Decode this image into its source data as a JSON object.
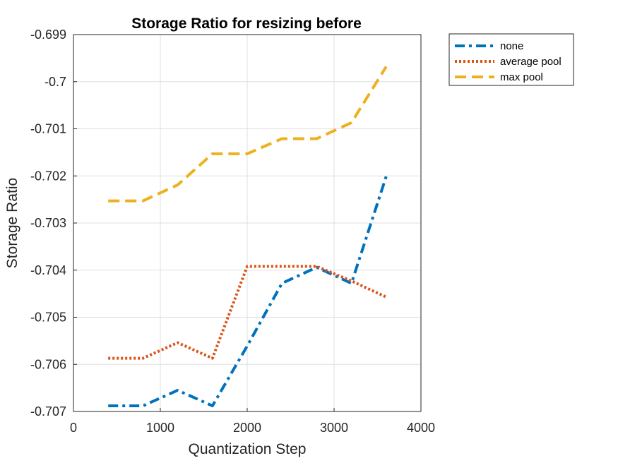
{
  "chart_data": {
    "type": "line",
    "title": "Storage Ratio for resizing before",
    "xlabel": "Quantization Step",
    "ylabel": "Storage Ratio",
    "xlim": [
      0,
      4000
    ],
    "ylim": [
      -0.707,
      -0.699
    ],
    "xticks": [
      0,
      1000,
      2000,
      3000,
      4000
    ],
    "xtick_labels": [
      "0",
      "1000",
      "2000",
      "3000",
      "4000"
    ],
    "yticks": [
      -0.699,
      -0.7,
      -0.701,
      -0.702,
      -0.703,
      -0.704,
      -0.705,
      -0.706,
      -0.707
    ],
    "ytick_labels": [
      "-0.699",
      "-0.7",
      "-0.701",
      "-0.702",
      "-0.703",
      "-0.704",
      "-0.705",
      "-0.706",
      "-0.707"
    ],
    "grid": true,
    "legend_position": "outside-top-right",
    "x": [
      400,
      800,
      1200,
      1600,
      2000,
      2400,
      2800,
      3200,
      3600
    ],
    "series": [
      {
        "name": "none",
        "color": "#0072BD",
        "style": "dash-dot",
        "values": [
          -0.70688,
          -0.70688,
          -0.70655,
          -0.70688,
          -0.70561,
          -0.70428,
          -0.70394,
          -0.70428,
          -0.70201
        ]
      },
      {
        "name": "average pool",
        "color": "#D95319",
        "style": "dotted",
        "values": [
          -0.70587,
          -0.70587,
          -0.70554,
          -0.70587,
          -0.70392,
          -0.70392,
          -0.70392,
          -0.70423,
          -0.70457
        ]
      },
      {
        "name": "max pool",
        "color": "#EDB120",
        "style": "dashed",
        "values": [
          -0.70253,
          -0.70253,
          -0.70219,
          -0.70153,
          -0.70153,
          -0.70121,
          -0.70121,
          -0.70087,
          -0.69968
        ]
      }
    ]
  }
}
